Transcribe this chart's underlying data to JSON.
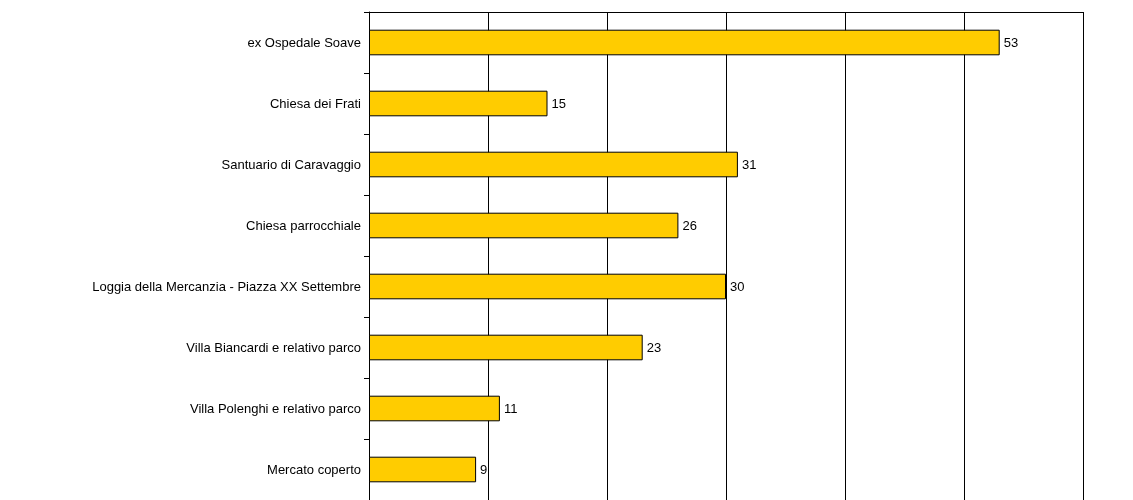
{
  "chart_data": {
    "type": "bar",
    "orientation": "horizontal",
    "categories": [
      "ex Ospedale Soave",
      "Chiesa dei Frati",
      "Santuario di Caravaggio",
      "Chiesa parrocchiale",
      "Loggia della Mercanzia - Piazza XX Settembre",
      "Villa Biancardi e relativo parco",
      "Villa Polenghi e relativo parco",
      "Mercato coperto"
    ],
    "values": [
      53,
      15,
      31,
      26,
      30,
      23,
      11,
      9
    ],
    "color": "#ffcc00",
    "data_labels": true,
    "xlim": [
      0,
      60
    ],
    "xticks": [
      {
        "value": 0,
        "label": null
      },
      {
        "value": 10,
        "label": null
      },
      {
        "value": 20,
        "label": null
      },
      {
        "value": 30,
        "label": null
      },
      {
        "value": 40,
        "label": null
      },
      {
        "value": 50,
        "label": null
      },
      {
        "value": 60,
        "label": null
      }
    ],
    "grid": "x",
    "tick_labels": "y"
  }
}
